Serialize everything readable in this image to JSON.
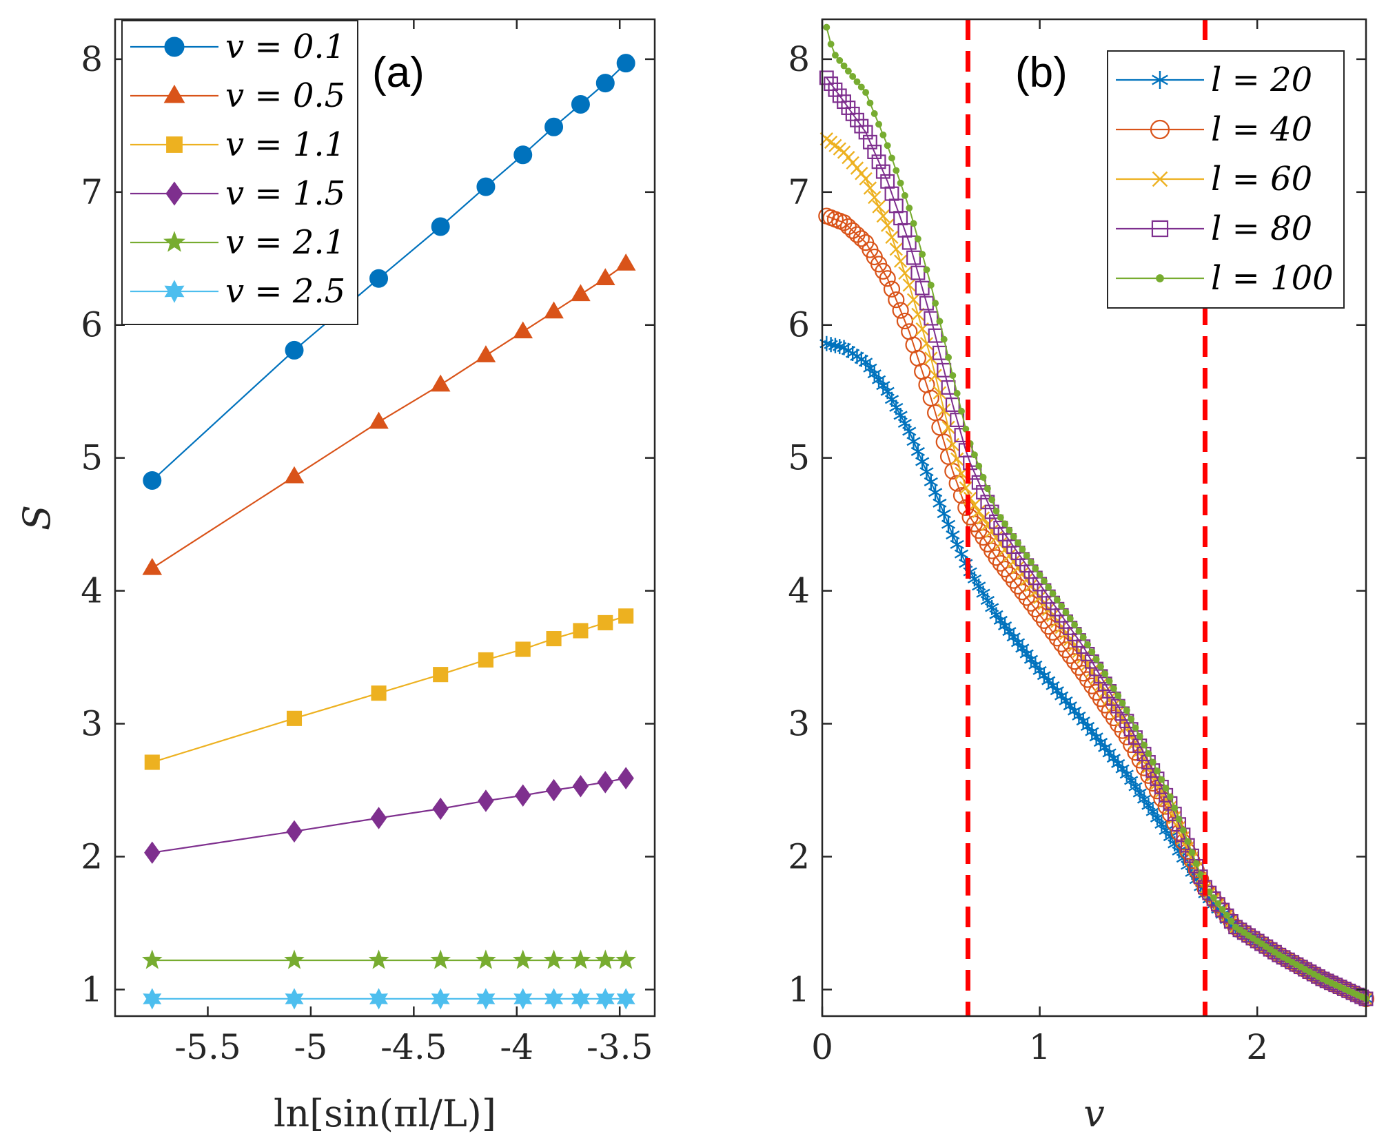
{
  "chart_data": [
    {
      "type": "line",
      "panel_label": "(a)",
      "xlabel": "ln[sin(πl/L)]",
      "ylabel": "S",
      "xlim": [
        -5.95,
        -3.33
      ],
      "ylim": [
        0.8,
        8.3
      ],
      "xticks": [
        -5.5,
        -5,
        -4.5,
        -4,
        -3.5
      ],
      "xtick_labels": [
        "-5.5",
        "-5",
        "-4.5",
        "-4",
        "-3.5"
      ],
      "yticks": [
        1,
        2,
        3,
        4,
        5,
        6,
        7,
        8
      ],
      "ytick_labels": [
        "1",
        "2",
        "3",
        "4",
        "5",
        "6",
        "7",
        "8"
      ],
      "legend_position": "top-left",
      "x": [
        -5.77,
        -5.08,
        -4.67,
        -4.37,
        -4.15,
        -3.97,
        -3.82,
        -3.69,
        -3.57,
        -3.47
      ],
      "series": [
        {
          "name": "v = 0.1",
          "marker": "circle",
          "color": "#0072BD",
          "values": [
            4.83,
            5.81,
            6.35,
            6.74,
            7.04,
            7.28,
            7.49,
            7.66,
            7.82,
            7.97
          ]
        },
        {
          "name": "v = 0.5",
          "marker": "triangle",
          "color": "#D95319",
          "values": [
            4.17,
            4.86,
            5.27,
            5.55,
            5.77,
            5.95,
            6.1,
            6.23,
            6.35,
            6.46
          ]
        },
        {
          "name": "v = 1.1",
          "marker": "square",
          "color": "#EDB120",
          "values": [
            2.71,
            3.04,
            3.23,
            3.37,
            3.48,
            3.56,
            3.64,
            3.7,
            3.76,
            3.81
          ]
        },
        {
          "name": "v = 1.5",
          "marker": "diamond",
          "color": "#7E2F8E",
          "values": [
            2.03,
            2.19,
            2.29,
            2.36,
            2.42,
            2.46,
            2.5,
            2.53,
            2.56,
            2.59
          ]
        },
        {
          "name": "v = 2.1",
          "marker": "pentagram",
          "color": "#77AC30",
          "values": [
            1.22,
            1.22,
            1.22,
            1.22,
            1.22,
            1.22,
            1.22,
            1.22,
            1.22,
            1.22
          ]
        },
        {
          "name": "v = 2.5",
          "marker": "hexagram",
          "color": "#4DBEEE",
          "values": [
            0.93,
            0.93,
            0.93,
            0.93,
            0.93,
            0.93,
            0.93,
            0.93,
            0.93,
            0.93
          ]
        }
      ]
    },
    {
      "type": "line",
      "panel_label": "(b)",
      "xlabel": "v",
      "ylabel": "",
      "xlim": [
        0,
        2.5
      ],
      "ylim": [
        0.8,
        8.3
      ],
      "xticks": [
        0,
        1,
        2
      ],
      "xtick_labels": [
        "0",
        "1",
        "2"
      ],
      "yticks": [
        1,
        2,
        3,
        4,
        5,
        6,
        7,
        8
      ],
      "ytick_labels": [
        "1",
        "2",
        "3",
        "4",
        "5",
        "6",
        "7",
        "8"
      ],
      "legend_position": "top-right",
      "vlines": [
        0.67,
        1.76
      ],
      "vline_color": "#FF0000",
      "x_start": 0.02,
      "x_end": 2.5,
      "n_points": 125,
      "series": [
        {
          "name": "l = 20",
          "marker": "asterisk",
          "color": "#0072BD",
          "keypoints": [
            [
              0.02,
              5.86
            ],
            [
              0.1,
              5.83
            ],
            [
              0.2,
              5.72
            ],
            [
              0.3,
              5.5
            ],
            [
              0.4,
              5.2
            ],
            [
              0.5,
              4.82
            ],
            [
              0.6,
              4.42
            ],
            [
              0.67,
              4.17
            ],
            [
              0.8,
              3.82
            ],
            [
              1.0,
              3.4
            ],
            [
              1.2,
              3.02
            ],
            [
              1.4,
              2.62
            ],
            [
              1.6,
              2.15
            ],
            [
              1.76,
              1.72
            ],
            [
              1.9,
              1.45
            ],
            [
              2.1,
              1.25
            ],
            [
              2.3,
              1.08
            ],
            [
              2.5,
              0.93
            ]
          ]
        },
        {
          "name": "l = 40",
          "marker": "circle",
          "color": "#D95319",
          "keypoints": [
            [
              0.02,
              6.82
            ],
            [
              0.1,
              6.77
            ],
            [
              0.2,
              6.62
            ],
            [
              0.3,
              6.35
            ],
            [
              0.4,
              5.95
            ],
            [
              0.5,
              5.45
            ],
            [
              0.6,
              4.9
            ],
            [
              0.67,
              4.58
            ],
            [
              0.8,
              4.25
            ],
            [
              1.0,
              3.82
            ],
            [
              1.2,
              3.38
            ],
            [
              1.4,
              2.9
            ],
            [
              1.6,
              2.32
            ],
            [
              1.76,
              1.76
            ],
            [
              1.9,
              1.47
            ],
            [
              2.1,
              1.26
            ],
            [
              2.3,
              1.08
            ],
            [
              2.5,
              0.93
            ]
          ]
        },
        {
          "name": "l = 60",
          "marker": "x",
          "color": "#EDB120",
          "keypoints": [
            [
              0.02,
              7.4
            ],
            [
              0.1,
              7.3
            ],
            [
              0.2,
              7.1
            ],
            [
              0.3,
              6.75
            ],
            [
              0.4,
              6.3
            ],
            [
              0.5,
              5.75
            ],
            [
              0.6,
              5.1
            ],
            [
              0.67,
              4.72
            ],
            [
              0.8,
              4.4
            ],
            [
              1.0,
              3.95
            ],
            [
              1.2,
              3.5
            ],
            [
              1.4,
              2.98
            ],
            [
              1.6,
              2.37
            ],
            [
              1.76,
              1.76
            ],
            [
              1.9,
              1.47
            ],
            [
              2.1,
              1.26
            ],
            [
              2.3,
              1.08
            ],
            [
              2.5,
              0.93
            ]
          ]
        },
        {
          "name": "l = 80",
          "marker": "square",
          "color": "#7E2F8E",
          "keypoints": [
            [
              0.02,
              7.86
            ],
            [
              0.1,
              7.68
            ],
            [
              0.2,
              7.45
            ],
            [
              0.3,
              7.08
            ],
            [
              0.4,
              6.62
            ],
            [
              0.5,
              6.05
            ],
            [
              0.6,
              5.4
            ],
            [
              0.67,
              5.0
            ],
            [
              0.8,
              4.52
            ],
            [
              1.0,
              4.05
            ],
            [
              1.2,
              3.58
            ],
            [
              1.4,
              3.02
            ],
            [
              1.6,
              2.4
            ],
            [
              1.76,
              1.77
            ],
            [
              1.9,
              1.47
            ],
            [
              2.1,
              1.26
            ],
            [
              2.3,
              1.08
            ],
            [
              2.5,
              0.93
            ]
          ]
        },
        {
          "name": "l = 100",
          "marker": "dot",
          "color": "#77AC30",
          "keypoints": [
            [
              0.02,
              8.24
            ],
            [
              0.05,
              8.05
            ],
            [
              0.2,
              7.75
            ],
            [
              0.3,
              7.35
            ],
            [
              0.4,
              6.88
            ],
            [
              0.5,
              6.3
            ],
            [
              0.6,
              5.62
            ],
            [
              0.67,
              5.15
            ],
            [
              0.8,
              4.6
            ],
            [
              1.0,
              4.12
            ],
            [
              1.2,
              3.65
            ],
            [
              1.4,
              3.1
            ],
            [
              1.6,
              2.45
            ],
            [
              1.76,
              1.78
            ],
            [
              1.9,
              1.47
            ],
            [
              2.1,
              1.26
            ],
            [
              2.3,
              1.08
            ],
            [
              2.5,
              0.93
            ]
          ]
        }
      ]
    }
  ]
}
